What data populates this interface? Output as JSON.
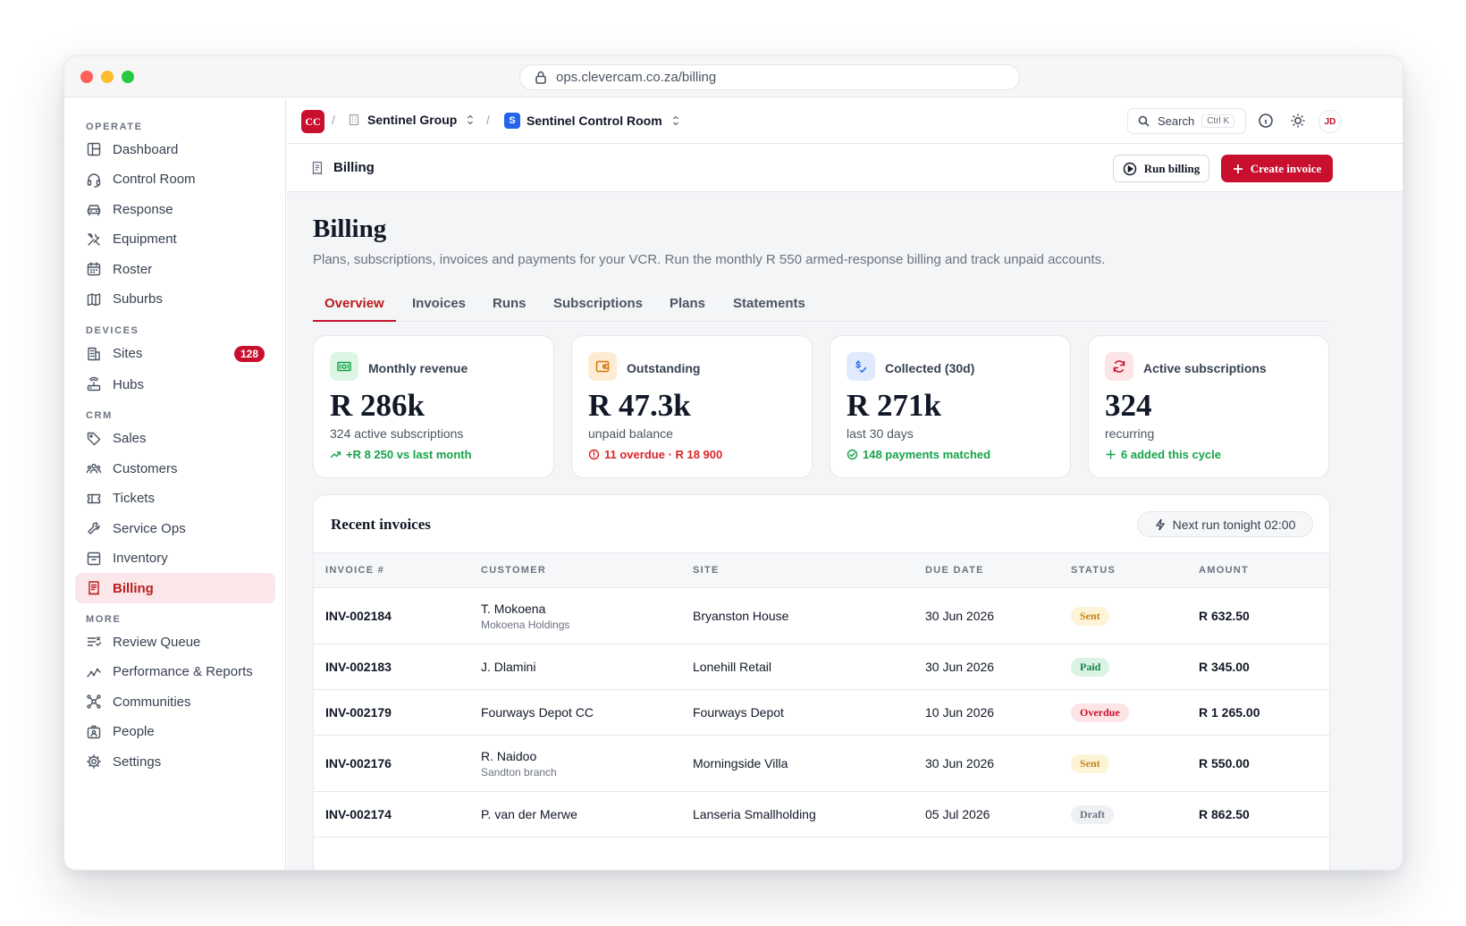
{
  "browser": {
    "url": "ops.clevercam.co.za/billing"
  },
  "sidebar": {
    "sections": [
      {
        "label": "OPERATE",
        "items": [
          {
            "label": "Dashboard",
            "icon": "layout-icon"
          },
          {
            "label": "Control Room",
            "icon": "headset-icon"
          },
          {
            "label": "Response",
            "icon": "car-icon"
          },
          {
            "label": "Equipment",
            "icon": "tools-icon"
          },
          {
            "label": "Roster",
            "icon": "calendar-icon"
          },
          {
            "label": "Suburbs",
            "icon": "map-icon"
          }
        ]
      },
      {
        "label": "DEVICES",
        "items": [
          {
            "label": "Sites",
            "icon": "building-icon",
            "badge": "128"
          },
          {
            "label": "Hubs",
            "icon": "router-icon"
          }
        ]
      },
      {
        "label": "CRM",
        "items": [
          {
            "label": "Sales",
            "icon": "tag-icon"
          },
          {
            "label": "Customers",
            "icon": "users-icon"
          },
          {
            "label": "Tickets",
            "icon": "ticket-icon"
          },
          {
            "label": "Service Ops",
            "icon": "wrench-icon"
          },
          {
            "label": "Inventory",
            "icon": "archive-icon"
          },
          {
            "label": "Billing",
            "icon": "receipt-icon",
            "active": true
          }
        ]
      },
      {
        "label": "MORE",
        "items": [
          {
            "label": "Review Queue",
            "icon": "list-check-icon"
          },
          {
            "label": "Performance & Reports",
            "icon": "trend-icon"
          },
          {
            "label": "Communities",
            "icon": "network-icon"
          },
          {
            "label": "People",
            "icon": "id-card-icon"
          },
          {
            "label": "Settings",
            "icon": "gear-icon"
          }
        ]
      }
    ]
  },
  "topbar": {
    "logo": "CC",
    "org": "Sentinel Group",
    "workspace_initial": "S",
    "workspace": "Sentinel Control Room",
    "search_label": "Search",
    "search_shortcut": "Ctrl K",
    "avatar": "JD"
  },
  "pagebar": {
    "title": "Billing",
    "run_billing": "Run billing",
    "create_invoice": "Create invoice"
  },
  "page": {
    "title": "Billing",
    "subtitle": "Plans, subscriptions, invoices and payments for your VCR. Run the monthly R 550 armed-response billing and track unpaid accounts."
  },
  "tabs": [
    "Overview",
    "Invoices",
    "Runs",
    "Subscriptions",
    "Plans",
    "Statements"
  ],
  "stats": [
    {
      "label": "Monthly revenue",
      "value": "R 286k",
      "sub": "324 active subscriptions",
      "trend": "+R 8 250 vs last month",
      "tone": "#16a34a",
      "icon_bg": "#dcf5e5",
      "icon": "cash-icon"
    },
    {
      "label": "Outstanding",
      "value": "R 47.3k",
      "sub": "unpaid balance",
      "trend": "11 overdue · R 18 900",
      "tone": "#dc2626",
      "icon_bg": "#fdecd3",
      "icon": "wallet-icon"
    },
    {
      "label": "Collected (30d)",
      "value": "R 271k",
      "sub": "last 30 days",
      "trend": "148 payments matched",
      "tone": "#16a34a",
      "icon_bg": "#e0eafc",
      "icon": "payment-icon"
    },
    {
      "label": "Active subscriptions",
      "value": "324",
      "sub": "recurring",
      "trend": "6 added this cycle",
      "tone": "#16a34a",
      "icon_bg": "#fde4e6",
      "icon": "refresh-icon"
    }
  ],
  "invoices": {
    "title": "Recent invoices",
    "next_run": "Next run tonight 02:00",
    "columns": [
      "INVOICE #",
      "CUSTOMER",
      "SITE",
      "DUE DATE",
      "STATUS",
      "AMOUNT"
    ],
    "rows": [
      {
        "id": "INV-002184",
        "customer": "T. Mokoena",
        "customer_sub": "Mokoena Holdings",
        "site": "Bryanston House",
        "due": "30 Jun 2026",
        "status": "Sent",
        "amount": "R 632.50"
      },
      {
        "id": "INV-002183",
        "customer": "J. Dlamini",
        "customer_sub": "",
        "site": "Lonehill Retail",
        "due": "30 Jun 2026",
        "status": "Paid",
        "amount": "R 345.00"
      },
      {
        "id": "INV-002179",
        "customer": "Fourways Depot CC",
        "customer_sub": "",
        "site": "Fourways Depot",
        "due": "10 Jun 2026",
        "status": "Overdue",
        "amount": "R 1 265.00"
      },
      {
        "id": "INV-002176",
        "customer": "R. Naidoo",
        "customer_sub": "Sandton branch",
        "site": "Morningside Villa",
        "due": "30 Jun 2026",
        "status": "Sent",
        "amount": "R 550.00"
      },
      {
        "id": "INV-002174",
        "customer": "P. van der Merwe",
        "customer_sub": "",
        "site": "Lanseria Smallholding",
        "due": "05 Jul 2026",
        "status": "Draft",
        "amount": "R 862.50"
      }
    ]
  }
}
